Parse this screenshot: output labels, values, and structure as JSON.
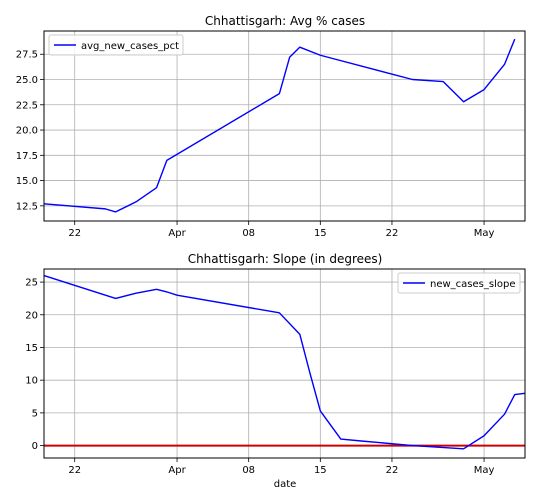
{
  "colors": {
    "series": "#0000ff",
    "zero_line": "#cc0000",
    "grid": "#b0b0b0",
    "axes": "#000000"
  },
  "chart_data": [
    {
      "type": "line",
      "title": "Chhattisgarh: Avg % cases",
      "xlabel": "",
      "ylabel": "",
      "x_range": [
        -10,
        37
      ],
      "ylim": [
        11.0,
        29.8
      ],
      "grid": true,
      "legend_position": "upper left",
      "x_ticks": [
        {
          "x": -7,
          "label": "22"
        },
        {
          "x": 3,
          "label": "Apr"
        },
        {
          "x": 10,
          "label": "08"
        },
        {
          "x": 17,
          "label": "15"
        },
        {
          "x": 24,
          "label": "22"
        },
        {
          "x": 33,
          "label": "May"
        }
      ],
      "y_ticks": [
        {
          "y": 12.5,
          "label": "12.5"
        },
        {
          "y": 15.0,
          "label": "15.0"
        },
        {
          "y": 17.5,
          "label": "17.5"
        },
        {
          "y": 20.0,
          "label": "20.0"
        },
        {
          "y": 22.5,
          "label": "22.5"
        },
        {
          "y": 25.0,
          "label": "25.0"
        },
        {
          "y": 27.5,
          "label": "27.5"
        }
      ],
      "series": [
        {
          "name": "avg_new_cases_pct",
          "x": [
            -10,
            -4,
            -3,
            -1,
            1,
            2,
            13,
            14,
            15,
            17,
            26,
            29,
            30,
            31,
            33,
            35,
            36
          ],
          "y": [
            12.7,
            12.2,
            11.9,
            12.9,
            14.3,
            17.0,
            23.6,
            27.2,
            28.2,
            27.4,
            25.0,
            24.8,
            23.8,
            22.8,
            24.0,
            26.5,
            29.0
          ]
        }
      ],
      "hlines": []
    },
    {
      "type": "line",
      "title": "Chhattisgarh: Slope (in degrees)",
      "xlabel": "date",
      "ylabel": "",
      "x_range": [
        -10,
        37
      ],
      "ylim": [
        -1.9,
        27.0
      ],
      "grid": true,
      "legend_position": "upper right",
      "x_ticks": [
        {
          "x": -7,
          "label": "22"
        },
        {
          "x": 3,
          "label": "Apr"
        },
        {
          "x": 10,
          "label": "08"
        },
        {
          "x": 17,
          "label": "15"
        },
        {
          "x": 24,
          "label": "22"
        },
        {
          "x": 33,
          "label": "May"
        }
      ],
      "y_ticks": [
        {
          "y": 0,
          "label": "0"
        },
        {
          "y": 5,
          "label": "5"
        },
        {
          "y": 10,
          "label": "10"
        },
        {
          "y": 15,
          "label": "15"
        },
        {
          "y": 20,
          "label": "20"
        },
        {
          "y": 25,
          "label": "25"
        }
      ],
      "series": [
        {
          "name": "new_cases_slope",
          "x": [
            -10,
            -3,
            -1,
            1,
            2,
            3,
            13,
            15,
            16,
            17,
            19,
            21,
            26,
            31,
            33,
            35,
            36,
            37
          ],
          "y": [
            26.0,
            22.5,
            23.3,
            23.9,
            23.5,
            23.0,
            20.3,
            17.0,
            11.0,
            5.3,
            1.0,
            0.7,
            0.0,
            -0.5,
            1.5,
            4.8,
            7.8,
            8.0
          ]
        }
      ],
      "hlines": [
        {
          "y": 0,
          "color": "#cc0000"
        }
      ]
    }
  ]
}
